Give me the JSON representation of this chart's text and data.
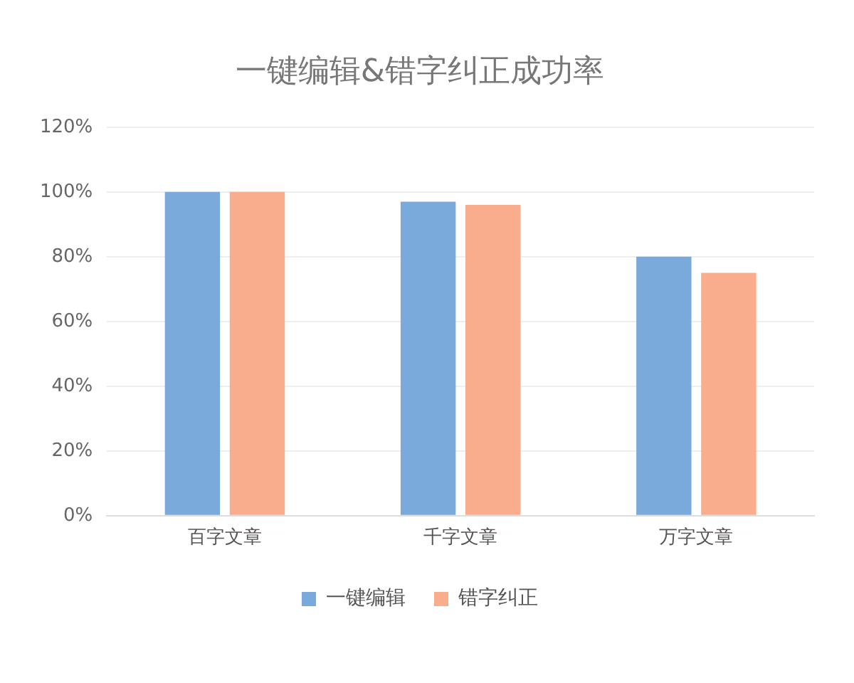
{
  "chart_data": {
    "type": "bar",
    "title": "一键编辑&错字纠正成功率",
    "categories": [
      "百字文章",
      "千字文章",
      "万字文章"
    ],
    "series": [
      {
        "name": "一键编辑",
        "color": "#7aaadc",
        "values": [
          100,
          97,
          80
        ]
      },
      {
        "name": "错字纠正",
        "color": "#f9ad8c",
        "values": [
          100,
          96,
          75
        ]
      }
    ],
    "ylim": [
      0,
      120
    ],
    "yticks": [
      {
        "value": 0,
        "label": "0%"
      },
      {
        "value": 20,
        "label": "20%"
      },
      {
        "value": 40,
        "label": "40%"
      },
      {
        "value": 60,
        "label": "60%"
      },
      {
        "value": 80,
        "label": "80%"
      },
      {
        "value": 100,
        "label": "100%"
      },
      {
        "value": 120,
        "label": "120%"
      }
    ],
    "grid": "y",
    "legend": "bottom"
  }
}
